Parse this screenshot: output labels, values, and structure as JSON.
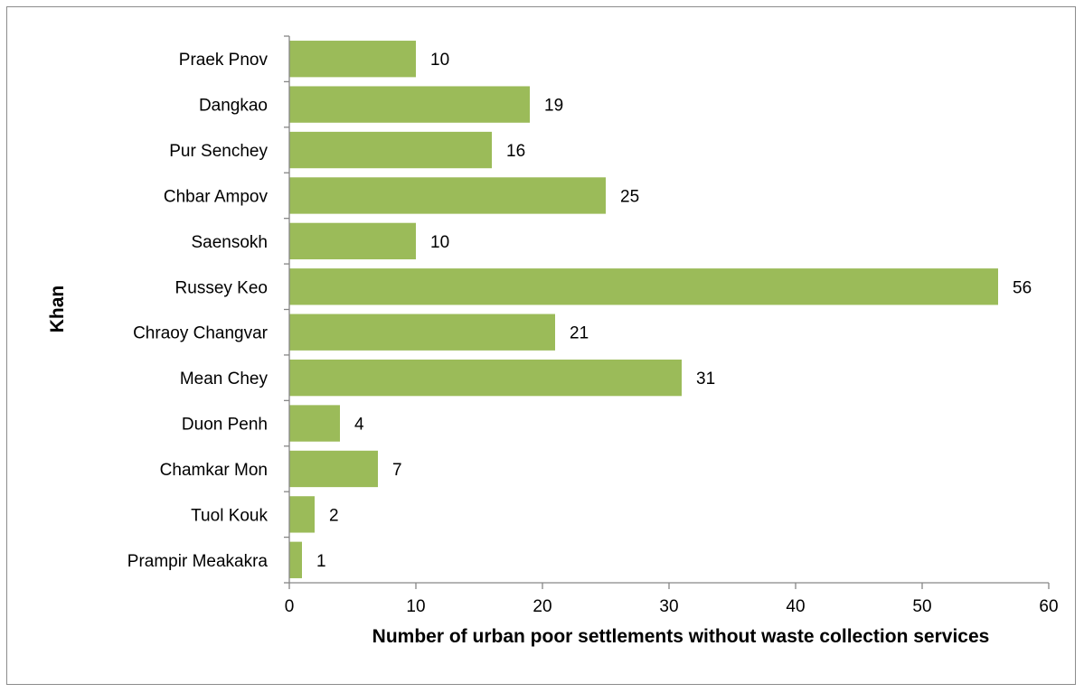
{
  "chart_data": {
    "type": "bar",
    "orientation": "horizontal",
    "categories": [
      "Praek Pnov",
      "Dangkao",
      "Pur Senchey",
      "Chbar Ampov",
      "Saensokh",
      "Russey Keo",
      "Chraoy Changvar",
      "Mean Chey",
      "Duon Penh",
      "Chamkar Mon",
      "Tuol Kouk",
      "Prampir Meakakra"
    ],
    "values": [
      10,
      19,
      16,
      25,
      10,
      56,
      21,
      31,
      4,
      7,
      2,
      1
    ],
    "xlabel": "Number of urban poor settlements without waste collection services",
    "ylabel": "Khan",
    "xlim": [
      0,
      60
    ],
    "xticks": [
      0,
      10,
      20,
      30,
      40,
      50,
      60
    ],
    "grid": false,
    "data_labels": true,
    "bar_color": "#9bbb59",
    "axis_color": "#868686"
  }
}
